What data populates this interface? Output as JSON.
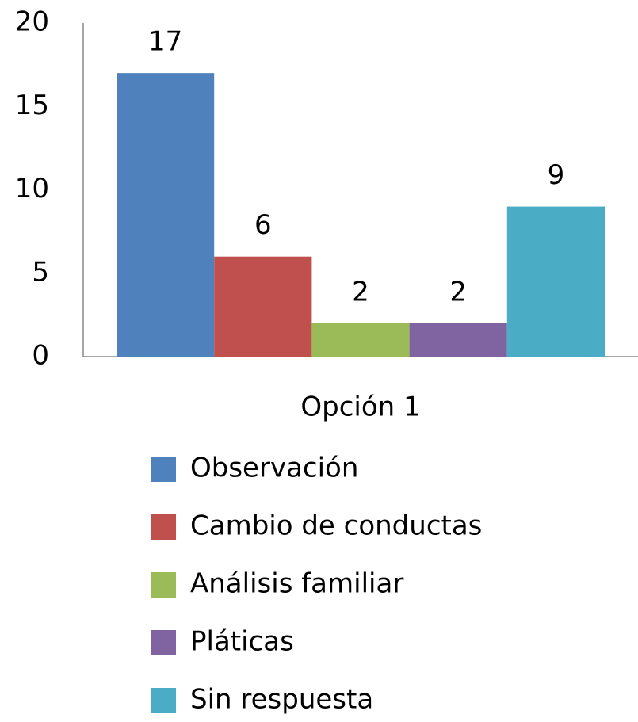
{
  "chart_data": {
    "type": "bar",
    "categories": [
      "Opción 1"
    ],
    "series": [
      {
        "name": "Observación",
        "color": "#4f81bd",
        "values": [
          17
        ]
      },
      {
        "name": "Cambio de conductas",
        "color": "#c0504d",
        "values": [
          6
        ]
      },
      {
        "name": "Análisis familiar",
        "color": "#9bbb59",
        "values": [
          2
        ]
      },
      {
        "name": "Pláticas",
        "color": "#8064a2",
        "values": [
          2
        ]
      },
      {
        "name": "Sin respuesta",
        "color": "#4bacc6",
        "values": [
          9
        ]
      }
    ],
    "ylim": [
      0,
      20
    ],
    "yticks": [
      0,
      5,
      10,
      15,
      20
    ],
    "grid": false,
    "legend": "bottom"
  }
}
